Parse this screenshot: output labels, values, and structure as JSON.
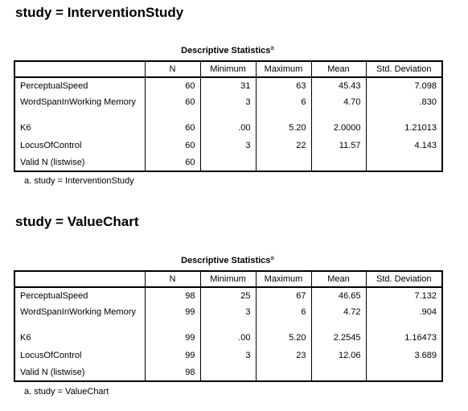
{
  "sections": [
    {
      "title": "study = InterventionStudy",
      "caption": "Descriptive Statistics",
      "caption_marker": "a",
      "columns": [
        "N",
        "Minimum",
        "Maximum",
        "Mean",
        "Std. Deviation"
      ],
      "rows": [
        {
          "label": "PerceptualSpeed",
          "cells": [
            "60",
            "31",
            "63",
            "45.43",
            "7.098"
          ]
        },
        {
          "label": "WordSpanInWorking Memory",
          "cells": [
            "60",
            "3",
            "6",
            "4.70",
            ".830"
          ]
        },
        {
          "label": "K6",
          "cells": [
            "60",
            ".00",
            "5.20",
            "2.0000",
            "1.21013"
          ]
        },
        {
          "label": "LocusOfControl",
          "cells": [
            "60",
            "3",
            "22",
            "11.57",
            "4.143"
          ]
        },
        {
          "label": "Valid N (listwise)",
          "cells": [
            "60",
            "",
            "",
            "",
            ""
          ]
        }
      ],
      "footnote": "a. study = InterventionStudy"
    },
    {
      "title": "study = ValueChart",
      "caption": "Descriptive Statistics",
      "caption_marker": "a",
      "columns": [
        "N",
        "Minimum",
        "Maximum",
        "Mean",
        "Std. Deviation"
      ],
      "rows": [
        {
          "label": "PerceptualSpeed",
          "cells": [
            "98",
            "25",
            "67",
            "46.65",
            "7.132"
          ]
        },
        {
          "label": "WordSpanInWorking Memory",
          "cells": [
            "99",
            "3",
            "6",
            "4.72",
            ".904"
          ]
        },
        {
          "label": "K6",
          "cells": [
            "99",
            ".00",
            "5.20",
            "2.2545",
            "1.16473"
          ]
        },
        {
          "label": "LocusOfControl",
          "cells": [
            "99",
            "3",
            "23",
            "12.06",
            "3.689"
          ]
        },
        {
          "label": "Valid N (listwise)",
          "cells": [
            "98",
            "",
            "",
            "",
            ""
          ]
        }
      ],
      "footnote": "a. study = ValueChart"
    }
  ]
}
